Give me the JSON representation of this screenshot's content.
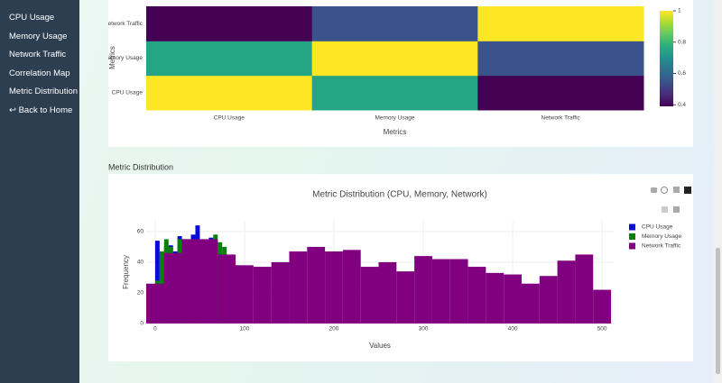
{
  "sidebar": {
    "links": [
      "CPU Usage",
      "Memory Usage",
      "Network Traffic",
      "Correlation Map",
      "Metric Distribution",
      "↩ Back to Home"
    ]
  },
  "section_title": "Metric Distribution",
  "chart_data": [
    {
      "type": "heatmap",
      "x_label": "Metrics",
      "y_label": "Metrics",
      "x": [
        "CPU Usage",
        "Memory Usage",
        "Network Traffic"
      ],
      "y": [
        "CPU Usage",
        "Memory Usage",
        "Network Traffic"
      ],
      "z": [
        [
          1,
          0.75,
          0.39
        ],
        [
          0.75,
          1,
          0.55
        ],
        [
          0.39,
          0.55,
          1
        ]
      ],
      "colorscale": "Viridis",
      "zlim": [
        0.39,
        1
      ],
      "colorbar_ticks": [
        0.4,
        0.6,
        0.8,
        1
      ]
    },
    {
      "type": "histogram",
      "title": "Metric Distribution (CPU, Memory, Network)",
      "x_label": "Values",
      "y_label": "Frequency",
      "barmode": "overlay",
      "series": [
        {
          "name": "CPU Usage",
          "color": "#0a0ad8",
          "bins": [
            0,
            5,
            10,
            15,
            20,
            25,
            30,
            35,
            40,
            45,
            50,
            55,
            60,
            65,
            70,
            75,
            80,
            85,
            90,
            95,
            100
          ],
          "values": [
            54,
            46,
            50,
            51,
            47,
            57,
            55,
            52,
            58,
            64,
            55,
            50,
            56,
            54,
            44,
            41,
            40,
            38,
            36,
            34
          ]
        },
        {
          "name": "Memory Usage",
          "color": "#0a800a",
          "bins": [
            0,
            5,
            10,
            15,
            20,
            25,
            30,
            35,
            40,
            45,
            50,
            55,
            60,
            65,
            70,
            75,
            80,
            85,
            90,
            95,
            100
          ],
          "values": [
            28,
            47,
            55,
            50,
            45,
            55,
            54,
            55,
            55,
            47,
            40,
            53,
            55,
            58,
            53,
            50,
            43,
            40,
            38,
            35
          ]
        },
        {
          "name": "Network Traffic",
          "color": "#800080",
          "bins": [
            -10,
            10,
            30,
            50,
            70,
            90,
            110,
            130,
            150,
            170,
            190,
            210,
            230,
            250,
            270,
            290,
            310,
            330,
            350,
            370,
            390,
            410,
            430,
            450,
            470,
            490,
            510
          ],
          "values": [
            26,
            46,
            55,
            55,
            45,
            38,
            37,
            40,
            47,
            50,
            47,
            48,
            37,
            40,
            34,
            44,
            42,
            42,
            37,
            33,
            32,
            26,
            31,
            41,
            45,
            22
          ]
        }
      ],
      "xlim": [
        -10,
        513
      ],
      "xticks": [
        0,
        100,
        200,
        300,
        400,
        500
      ],
      "ylim": [
        0,
        67
      ],
      "yticks": [
        0,
        20,
        40,
        60
      ],
      "grid": true,
      "legend": "top-right"
    }
  ]
}
